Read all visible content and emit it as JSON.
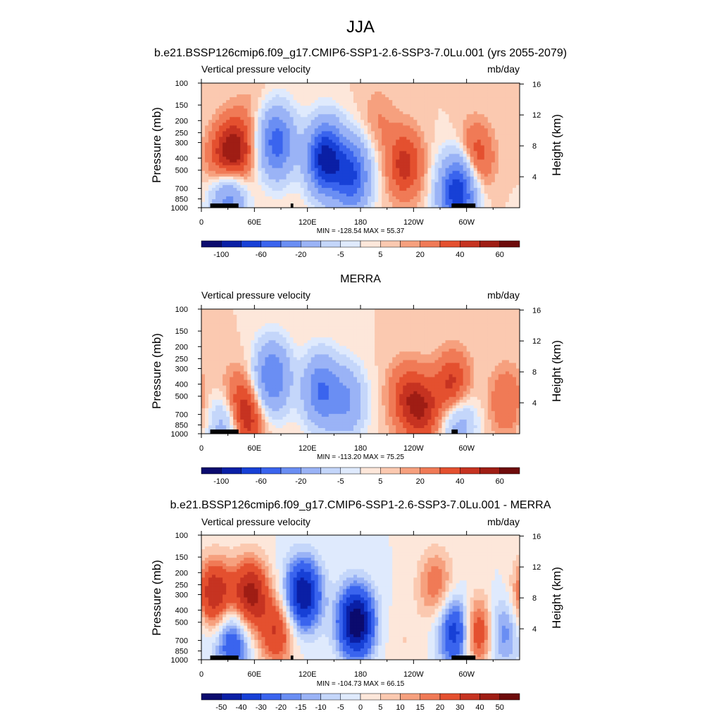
{
  "figure": {
    "title": "JJA",
    "panel_titles": [
      "b.e21.BSSP126cmip6.f09_g17.CMIP6-SSP1-2.6-SSP3-7.0Lu.001 (yrs 2055-2079)",
      "MERRA",
      "b.e21.BSSP126cmip6.f09_g17.CMIP6-SSP1-2.6-SSP3-7.0Lu.001 - MERRA"
    ],
    "variable": "Vertical pressure velocity",
    "units": "mb/day",
    "left_axis_label": "Pressure (mb)",
    "right_axis_label": "Height (km)",
    "colors": {
      "abs": [
        "#0b0b6e",
        "#0a1fa5",
        "#1740d6",
        "#3a64ee",
        "#6a8ef3",
        "#9ab3f6",
        "#c4d6fa",
        "#dfeafd",
        "#fde7da",
        "#fbc9b0",
        "#f6a07e",
        "#f07a56",
        "#e4502f",
        "#c63321",
        "#9f1d14",
        "#6e0b0b"
      ],
      "diff": [
        "#0b0b6e",
        "#0a1fa5",
        "#1740d6",
        "#3a64ee",
        "#6a8ef3",
        "#9ab3f6",
        "#c4d6fa",
        "#dfeafd",
        "#fde7da",
        "#fbc9b0",
        "#f6a07e",
        "#f07a56",
        "#e4502f",
        "#c63321",
        "#9f1d14",
        "#6e0b0b"
      ]
    }
  },
  "chart_data": [
    {
      "type": "heatmap",
      "title": "b.e21.BSSP126cmip6.f09_g17.CMIP6-SSP1-2.6-SSP3-7.0Lu.001 (yrs 2055-2079)",
      "subtitle_left": "Vertical pressure velocity",
      "subtitle_right": "mb/day",
      "x_ticks": [
        "0",
        "60E",
        "120E",
        "180",
        "120W",
        "60W"
      ],
      "x_range_deg_east": [
        0,
        360
      ],
      "y_ticks": [
        "100",
        "150",
        "200",
        "250",
        "300",
        "400",
        "500",
        "700",
        "850",
        "1000"
      ],
      "y_range_mb": [
        1000,
        100
      ],
      "height_ticks_km": [
        "4",
        "8",
        "12",
        "16"
      ],
      "stats": "MIN = -128.54  MAX =  55.37",
      "colorbar_labels": [
        "-100",
        "-60",
        "-20",
        "-5",
        "5",
        "20",
        "40",
        "60"
      ],
      "features": [
        {
          "lon": 25,
          "p": 450,
          "value": 35
        },
        {
          "lon": 40,
          "p": 350,
          "value": 40
        },
        {
          "lon": 30,
          "p": 800,
          "value": -60
        },
        {
          "lon": 85,
          "p": 300,
          "value": -70
        },
        {
          "lon": 140,
          "p": 400,
          "value": -110
        },
        {
          "lon": 170,
          "p": 550,
          "value": -80
        },
        {
          "lon": 230,
          "p": 450,
          "value": 35
        },
        {
          "lon": 290,
          "p": 750,
          "value": -100
        },
        {
          "lon": 310,
          "p": 400,
          "value": 30
        },
        {
          "lon": 200,
          "p": 200,
          "value": 10
        },
        {
          "lon": 60,
          "p": 150,
          "value": 5
        }
      ],
      "terrain": [
        {
          "lon_start": 10,
          "lon_end": 42
        },
        {
          "lon_start": 101,
          "lon_end": 104
        },
        {
          "lon_start": 283,
          "lon_end": 310
        }
      ]
    },
    {
      "type": "heatmap",
      "title": "MERRA",
      "subtitle_left": "Vertical pressure velocity",
      "subtitle_right": "mb/day",
      "x_ticks": [
        "0",
        "60E",
        "120E",
        "180",
        "120W",
        "60W"
      ],
      "x_range_deg_east": [
        0,
        360
      ],
      "y_ticks": [
        "100",
        "150",
        "200",
        "250",
        "300",
        "400",
        "500",
        "700",
        "850",
        "1000"
      ],
      "y_range_mb": [
        1000,
        100
      ],
      "height_ticks_km": [
        "4",
        "8",
        "12",
        "16"
      ],
      "stats": "MIN = -113.20  MAX =  75.25",
      "colorbar_labels": [
        "-100",
        "-60",
        "-20",
        "-5",
        "5",
        "20",
        "40",
        "60"
      ],
      "features": [
        {
          "lon": 35,
          "p": 600,
          "value": 30
        },
        {
          "lon": 50,
          "p": 750,
          "value": 40
        },
        {
          "lon": 30,
          "p": 800,
          "value": -50
        },
        {
          "lon": 80,
          "p": 350,
          "value": -60
        },
        {
          "lon": 135,
          "p": 450,
          "value": -60
        },
        {
          "lon": 165,
          "p": 550,
          "value": -40
        },
        {
          "lon": 230,
          "p": 500,
          "value": 25
        },
        {
          "lon": 250,
          "p": 650,
          "value": 35
        },
        {
          "lon": 290,
          "p": 750,
          "value": -40
        },
        {
          "lon": 285,
          "p": 450,
          "value": 45
        },
        {
          "lon": 345,
          "p": 550,
          "value": 20
        }
      ],
      "terrain": [
        {
          "lon_start": 10,
          "lon_end": 42
        },
        {
          "lon_start": 283,
          "lon_end": 290
        }
      ]
    },
    {
      "type": "heatmap",
      "title": "b.e21.BSSP126cmip6.f09_g17.CMIP6-SSP1-2.6-SSP3-7.0Lu.001 - MERRA",
      "subtitle_left": "Vertical pressure velocity",
      "subtitle_right": "mb/day",
      "x_ticks": [
        "0",
        "60E",
        "120E",
        "180",
        "120W",
        "60W"
      ],
      "x_range_deg_east": [
        0,
        360
      ],
      "y_ticks": [
        "100",
        "150",
        "200",
        "250",
        "300",
        "400",
        "500",
        "700",
        "850",
        "1000"
      ],
      "y_range_mb": [
        1000,
        100
      ],
      "height_ticks_km": [
        "4",
        "8",
        "12",
        "16"
      ],
      "stats": "MIN = -104.73  MAX =  66.15",
      "colorbar_labels": [
        "-50",
        "-40",
        "-30",
        "-20",
        "-15",
        "-10",
        "-5",
        "0",
        "5",
        "10",
        "15",
        "20",
        "30",
        "40",
        "50"
      ],
      "features": [
        {
          "lon": 15,
          "p": 300,
          "value": 40
        },
        {
          "lon": 55,
          "p": 300,
          "value": 45
        },
        {
          "lon": 85,
          "p": 600,
          "value": 30
        },
        {
          "lon": 35,
          "p": 700,
          "value": -30
        },
        {
          "lon": 115,
          "p": 300,
          "value": -50
        },
        {
          "lon": 175,
          "p": 500,
          "value": -60
        },
        {
          "lon": 265,
          "p": 250,
          "value": 20
        },
        {
          "lon": 290,
          "p": 600,
          "value": -45
        },
        {
          "lon": 310,
          "p": 600,
          "value": 40
        },
        {
          "lon": 340,
          "p": 600,
          "value": -20
        },
        {
          "lon": 230,
          "p": 700,
          "value": 5
        }
      ],
      "terrain": [
        {
          "lon_start": 10,
          "lon_end": 42
        },
        {
          "lon_start": 101,
          "lon_end": 104
        },
        {
          "lon_start": 283,
          "lon_end": 310
        }
      ]
    }
  ]
}
